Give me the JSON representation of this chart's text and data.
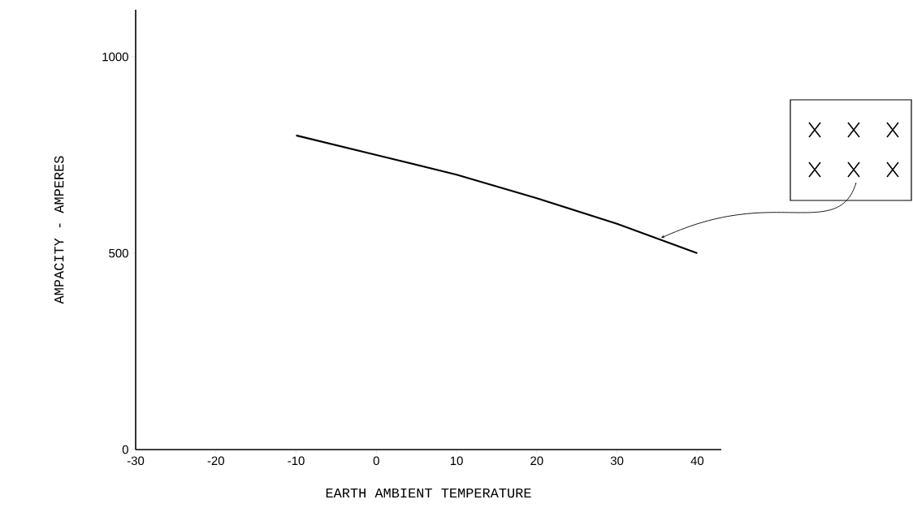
{
  "chart_data": {
    "type": "line",
    "xlabel": "EARTH AMBIENT TEMPERATURE",
    "ylabel": "AMPACITY - AMPERES",
    "x": [
      -10,
      0,
      10,
      20,
      30,
      40
    ],
    "values": [
      800,
      750,
      700,
      640,
      575,
      500
    ],
    "color": "#000000",
    "xlim": [
      -30,
      43
    ],
    "ylim": [
      0,
      1120
    ],
    "xticks": [
      -30,
      -20,
      -10,
      0,
      10,
      20,
      30,
      40
    ],
    "yticks": [
      0,
      500,
      1000
    ]
  }
}
